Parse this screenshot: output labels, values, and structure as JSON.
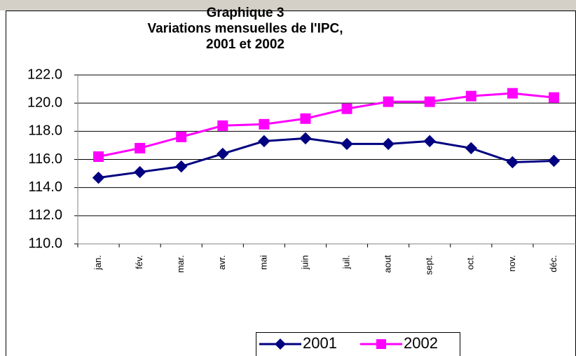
{
  "chart_data": {
    "type": "line",
    "title": [
      "Graphique 3",
      "Variations mensuelles de l'IPC,",
      "2001 et 2002"
    ],
    "categories": [
      "jan.",
      "fév.",
      "mar.",
      "avr.",
      "mai",
      "juin",
      "juil.",
      "aout",
      "sept.",
      "oct.",
      "nov.",
      "déc."
    ],
    "series": [
      {
        "name": "2001",
        "color": "#000080",
        "marker": "diamond",
        "values": [
          114.7,
          115.1,
          115.5,
          116.4,
          117.3,
          117.5,
          117.1,
          117.1,
          117.3,
          116.8,
          115.8,
          115.9
        ]
      },
      {
        "name": "2002",
        "color": "#ff00ff",
        "marker": "square",
        "values": [
          116.2,
          116.8,
          117.6,
          118.4,
          118.5,
          118.9,
          119.6,
          120.1,
          120.1,
          120.5,
          120.7,
          120.4
        ]
      }
    ],
    "ylim": [
      110,
      122
    ],
    "yticks": [
      {
        "value": 110,
        "label": "110.0"
      },
      {
        "value": 112,
        "label": "112.0"
      },
      {
        "value": 114,
        "label": "114.0"
      },
      {
        "value": 116,
        "label": "116.0"
      },
      {
        "value": 118,
        "label": "118.0"
      },
      {
        "value": 120,
        "label": "120.0"
      },
      {
        "value": 122,
        "label": "122.0"
      }
    ],
    "grid": true,
    "legend": "bottom"
  }
}
